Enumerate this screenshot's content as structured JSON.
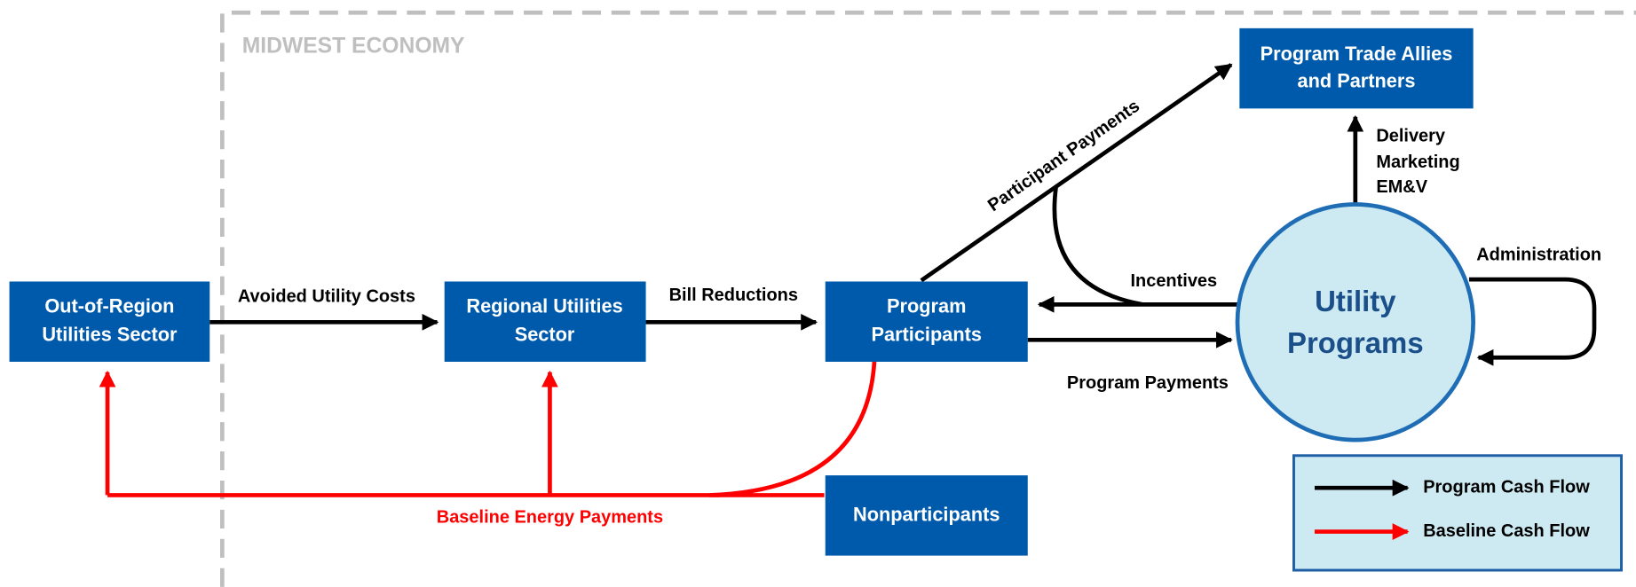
{
  "region": "MIDWEST ECONOMY",
  "nodes": [
    {
      "label": [
        "Out-of-Region",
        "Utilities Sector"
      ]
    },
    {
      "label": [
        "Regional Utilities",
        "Sector"
      ]
    },
    {
      "label": [
        "Program",
        "Participants"
      ]
    },
    {
      "label": [
        "Nonparticipants"
      ]
    },
    {
      "label": [
        "Program Trade Allies",
        "and Partners"
      ]
    },
    {
      "label": [
        "Utility",
        "Programs"
      ]
    }
  ],
  "edges": [
    {
      "label": [
        "Avoided Utility Costs"
      ]
    },
    {
      "label": [
        "Bill Reductions"
      ]
    },
    {
      "label": [
        "Participant Payments"
      ]
    },
    {
      "label": [
        "Incentives"
      ]
    },
    {
      "label": [
        "Program Payments"
      ]
    },
    {
      "label": [
        "Delivery",
        "Marketing",
        "EM&V"
      ]
    },
    {
      "label": [
        "Administration"
      ]
    },
    {
      "label": [
        "Baseline Energy Payments"
      ]
    }
  ],
  "legend": [
    "Program Cash Flow",
    "Baseline Cash Flow"
  ]
}
